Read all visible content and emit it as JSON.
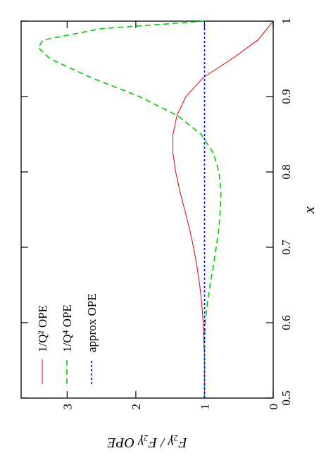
{
  "chart_data": {
    "type": "line",
    "x_label": "x",
    "y_label": "F₂γ / F₂γ OPE",
    "xlim": [
      0.5,
      1
    ],
    "xticks": [
      0.5,
      0.6,
      0.7,
      0.8,
      0.9,
      1
    ],
    "ylim": [
      0,
      3.67
    ],
    "yticks": [
      0,
      1,
      2,
      3
    ],
    "legend": "top-left",
    "series": [
      {
        "name": "1/Q² OPE",
        "color": "#e00000",
        "dash": "solid",
        "x": [
          0.5,
          0.525,
          0.55,
          0.575,
          0.6,
          0.625,
          0.65,
          0.675,
          0.7,
          0.725,
          0.75,
          0.775,
          0.8,
          0.825,
          0.85,
          0.875,
          0.9,
          0.925,
          0.95,
          0.975,
          1
        ],
        "values": [
          1,
          1,
          1,
          1.01,
          1.02,
          1.04,
          1.07,
          1.11,
          1.16,
          1.22,
          1.29,
          1.36,
          1.42,
          1.46,
          1.46,
          1.4,
          1.27,
          1.02,
          0.6,
          0.22,
          0
        ]
      },
      {
        "name": "1/Q⁴ OPE",
        "color": "#00cc00",
        "dash": "dashed",
        "x": [
          0.5,
          0.525,
          0.55,
          0.575,
          0.6,
          0.625,
          0.65,
          0.675,
          0.7,
          0.725,
          0.75,
          0.775,
          0.8,
          0.825,
          0.85,
          0.875,
          0.9,
          0.925,
          0.95,
          0.965,
          0.975,
          0.99,
          1
        ],
        "values": [
          1,
          1,
          1,
          1,
          0.99,
          0.96,
          0.92,
          0.87,
          0.83,
          0.79,
          0.77,
          0.76,
          0.79,
          0.87,
          1.05,
          1.4,
          1.95,
          2.65,
          3.25,
          3.42,
          3.35,
          2.5,
          1
        ]
      },
      {
        "name": "approx OPE",
        "color": "#0000dd",
        "dash": "dotted",
        "x": [
          0.5,
          1
        ],
        "values": [
          1,
          1
        ]
      }
    ]
  }
}
